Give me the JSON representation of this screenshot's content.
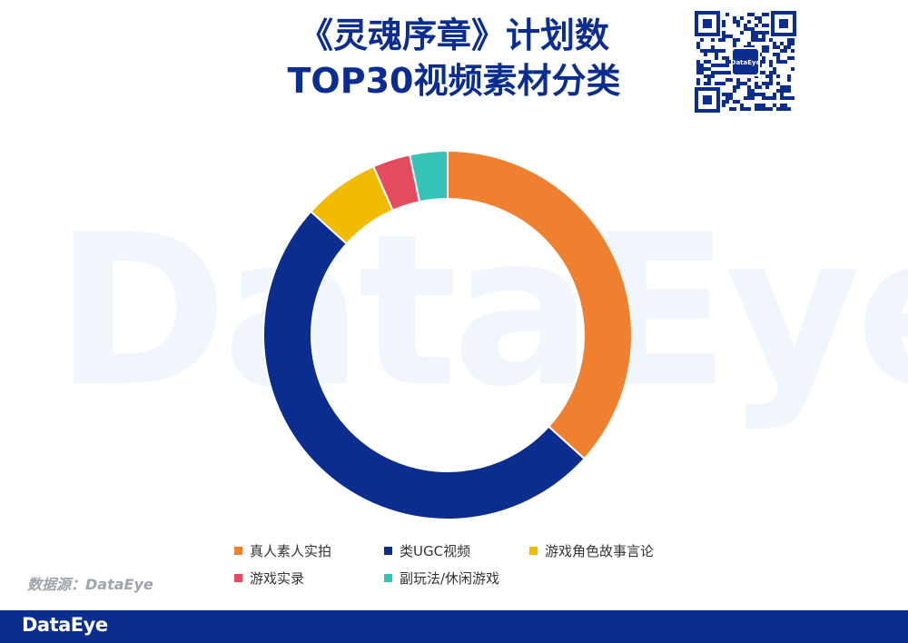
{
  "watermark": "DataEye",
  "title": [
    "《灵魂序章》计划数",
    "TOP30视频素材分类"
  ],
  "qr": {
    "icon": "qr-code-icon",
    "logo_text": "DataEye"
  },
  "chart_data": {
    "type": "pie",
    "style": "donut",
    "categories": [
      "真人素人实拍",
      "类UGC视频",
      "游戏角色故事言论",
      "游戏实录",
      "副玩法/休闲游戏"
    ],
    "values": [
      36.7,
      50.0,
      6.7,
      3.3,
      3.3
    ],
    "colors": [
      "#ee8030",
      "#0b2d8f",
      "#f1bb00",
      "#e44b5e",
      "#35c3b8"
    ],
    "legend_position": "bottom",
    "title": "",
    "xlabel": "",
    "ylabel": ""
  },
  "source_label": "数据源：DataEye",
  "footer": {
    "logo_text": "DataEye"
  }
}
